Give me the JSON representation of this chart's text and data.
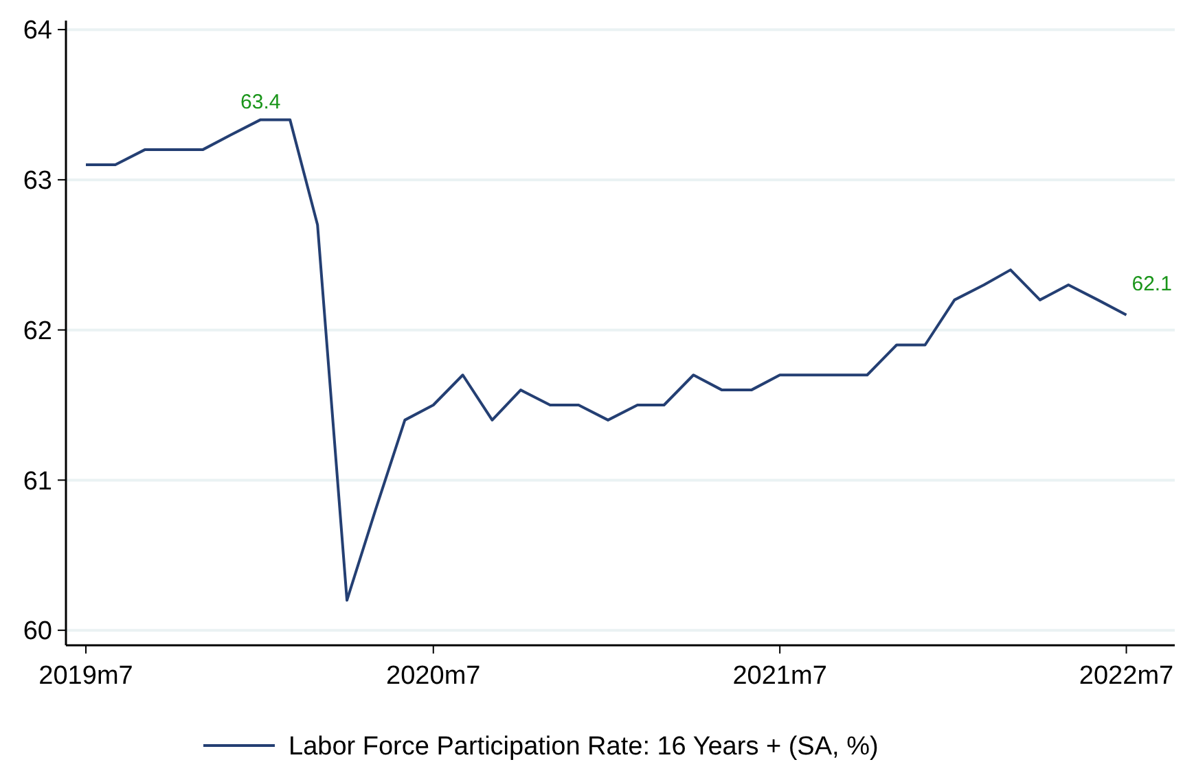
{
  "chart_data": {
    "type": "line",
    "x": [
      "2019-07",
      "2019-08",
      "2019-09",
      "2019-10",
      "2019-11",
      "2019-12",
      "2020-01",
      "2020-02",
      "2020-03",
      "2020-04",
      "2020-05",
      "2020-06",
      "2020-07",
      "2020-08",
      "2020-09",
      "2020-10",
      "2020-11",
      "2020-12",
      "2021-01",
      "2021-02",
      "2021-03",
      "2021-04",
      "2021-05",
      "2021-06",
      "2021-07",
      "2021-08",
      "2021-09",
      "2021-10",
      "2021-11",
      "2021-12",
      "2022-01",
      "2022-02",
      "2022-03",
      "2022-04",
      "2022-05",
      "2022-06",
      "2022-07"
    ],
    "series": [
      {
        "name": "Labor Force Participation Rate: 16 Years + (SA, %)",
        "color": "#243f73",
        "values": [
          63.1,
          63.1,
          63.2,
          63.2,
          63.2,
          63.3,
          63.4,
          63.4,
          62.7,
          60.2,
          60.8,
          61.4,
          61.5,
          61.7,
          61.4,
          61.6,
          61.5,
          61.5,
          61.4,
          61.5,
          61.5,
          61.7,
          61.6,
          61.6,
          61.7,
          61.7,
          61.7,
          61.7,
          61.9,
          61.9,
          62.2,
          62.3,
          62.4,
          62.2,
          62.3,
          62.2,
          62.1
        ]
      }
    ],
    "xlim": [
      "2019-06-10",
      "2022-08-21"
    ],
    "xticks": [
      {
        "value": "2019-07",
        "label": "2019m7"
      },
      {
        "value": "2020-07",
        "label": "2020m7"
      },
      {
        "value": "2021-07",
        "label": "2021m7"
      },
      {
        "value": "2022-07",
        "label": "2022m7"
      }
    ],
    "ylim": [
      59.9,
      64.06
    ],
    "yticks": [
      60,
      61,
      62,
      63,
      64
    ],
    "grid": "y",
    "legend": "bottom",
    "marker": "none",
    "line_style": "solid",
    "annotations": [
      {
        "text": "63.4",
        "x": "2020-01",
        "y": 63.4
      },
      {
        "text": "62.1",
        "x": "2022-07",
        "y": 62.1
      }
    ]
  }
}
